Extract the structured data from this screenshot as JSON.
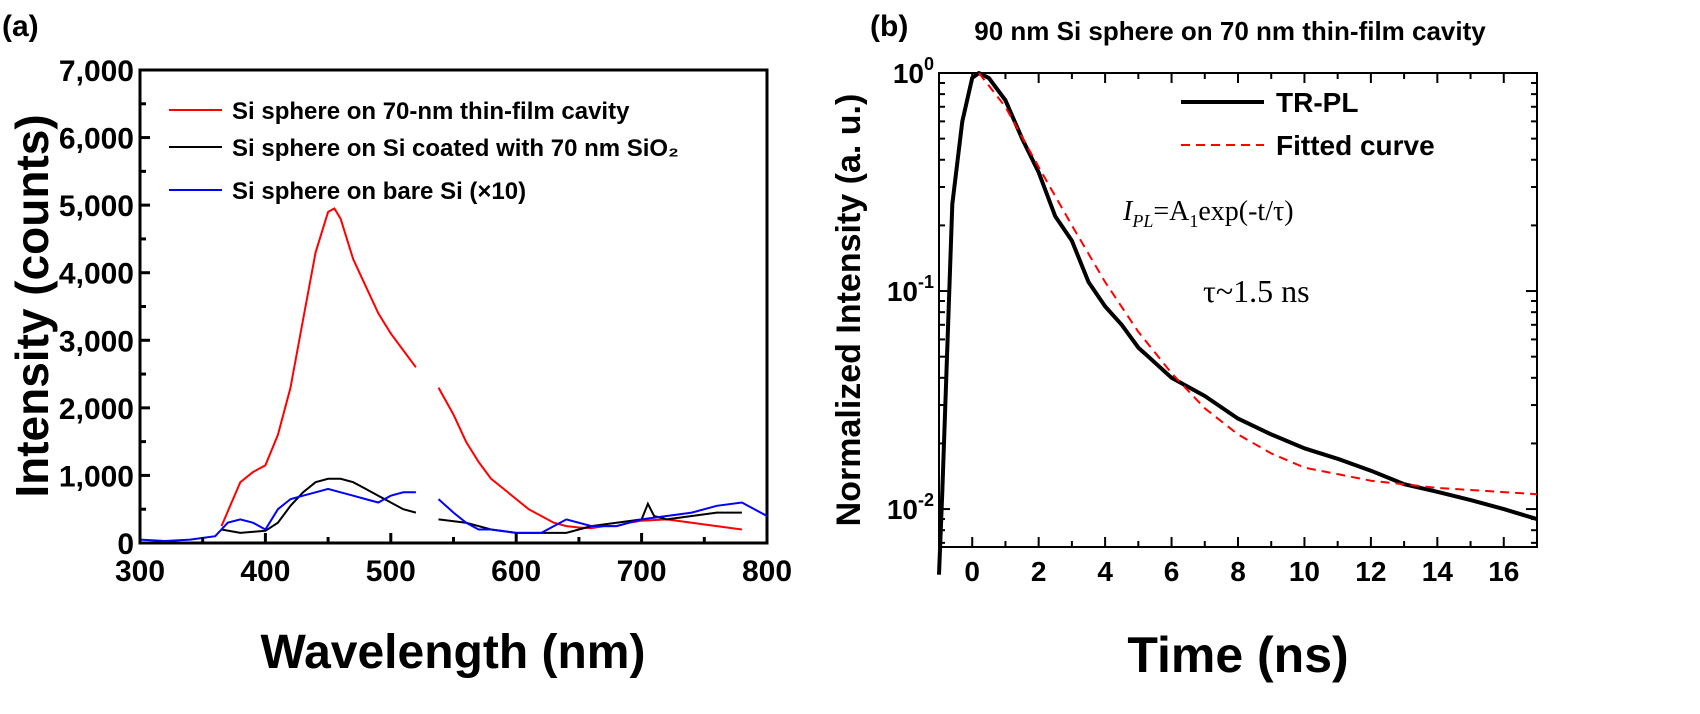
{
  "panels": {
    "a_label": "(a)",
    "b_label": "(b)"
  },
  "chart_data": [
    {
      "type": "line",
      "panel": "(a)",
      "title": "",
      "xlabel": "Wavelength (nm)",
      "ylabel": "Intensity (counts)",
      "xlim": [
        300,
        800
      ],
      "ylim": [
        0,
        7000
      ],
      "xticks": [
        300,
        400,
        500,
        600,
        700,
        800
      ],
      "xtick_labels": [
        "300",
        "400",
        "500",
        "600",
        "700",
        "800"
      ],
      "yticks": [
        0,
        1000,
        2000,
        3000,
        4000,
        5000,
        6000,
        7000
      ],
      "ytick_labels": [
        "0",
        "1,000",
        "2,000",
        "3,000",
        "4,000",
        "5,000",
        "6,000",
        "7,000"
      ],
      "grid": false,
      "legend_position": "top-left",
      "series": [
        {
          "name": "Si sphere on 70-nm thin-film cavity",
          "color": "#ff0000",
          "segments": [
            {
              "x": [
                365,
                380,
                390,
                400,
                410,
                420,
                430,
                440,
                450,
                455,
                460,
                470,
                480,
                490,
                500,
                510,
                520
              ],
              "y": [
                250,
                900,
                1050,
                1150,
                1600,
                2300,
                3300,
                4300,
                4900,
                4950,
                4800,
                4200,
                3800,
                3400,
                3100,
                2850,
                2600
              ]
            },
            {
              "x": [
                538,
                550,
                560,
                570,
                580,
                590,
                600,
                610,
                620,
                630,
                640,
                650,
                660,
                670,
                680,
                690,
                700,
                720,
                740,
                760,
                780
              ],
              "y": [
                2300,
                1900,
                1500,
                1200,
                950,
                800,
                650,
                500,
                400,
                300,
                250,
                230,
                220,
                250,
                250,
                300,
                330,
                350,
                300,
                250,
                200
              ]
            }
          ]
        },
        {
          "name": "Si sphere on Si coated with 70 nm SiO₂",
          "color": "#000000",
          "segments": [
            {
              "x": [
                365,
                380,
                400,
                410,
                420,
                430,
                440,
                450,
                460,
                470,
                480,
                490,
                500,
                510,
                520
              ],
              "y": [
                200,
                150,
                180,
                300,
                550,
                750,
                900,
                950,
                950,
                900,
                800,
                700,
                600,
                500,
                450
              ]
            },
            {
              "x": [
                538,
                560,
                580,
                600,
                620,
                640,
                660,
                680,
                700,
                705,
                710,
                720,
                740,
                760,
                780
              ],
              "y": [
                350,
                300,
                200,
                150,
                150,
                150,
                250,
                300,
                350,
                580,
                400,
                350,
                400,
                450,
                450
              ]
            }
          ]
        },
        {
          "name": "Si sphere on bare Si (×10)",
          "color": "#0000ff",
          "segments": [
            {
              "x": [
                300,
                320,
                340,
                360,
                370,
                380,
                390,
                400,
                410,
                420,
                430,
                440,
                450,
                460,
                470,
                480,
                490,
                500,
                510,
                520
              ],
              "y": [
                50,
                30,
                50,
                100,
                300,
                350,
                300,
                200,
                500,
                650,
                700,
                750,
                800,
                750,
                700,
                650,
                600,
                700,
                750,
                750
              ]
            },
            {
              "x": [
                538,
                550,
                560,
                570,
                580,
                600,
                620,
                640,
                660,
                680,
                700,
                720,
                740,
                760,
                780,
                800
              ],
              "y": [
                650,
                450,
                300,
                200,
                200,
                150,
                150,
                350,
                250,
                250,
                350,
                400,
                450,
                550,
                600,
                400
              ]
            }
          ]
        }
      ]
    },
    {
      "type": "line",
      "panel": "(b)",
      "title": "90 nm Si sphere on 70 nm thin-film cavity",
      "xlabel": "Time (ns)",
      "ylabel": "Normalized Intensity (a. u.)",
      "xlim": [
        -1,
        17
      ],
      "ylim": [
        0.0067,
        1
      ],
      "yscale": "log",
      "xticks": [
        0,
        2,
        4,
        6,
        8,
        10,
        12,
        14,
        16
      ],
      "xtick_labels": [
        "0",
        "2",
        "4",
        "6",
        "8",
        "10",
        "12",
        "14",
        "16"
      ],
      "yticks": [
        1,
        0.1,
        0.01
      ],
      "ytick_labels": [
        {
          "base": "10",
          "exp": "0"
        },
        {
          "base": "10",
          "exp": "-1"
        },
        {
          "base": "10",
          "exp": "-2"
        }
      ],
      "grid": false,
      "legend_position": "top-right",
      "annotations": {
        "equation": {
          "I": "I",
          "sub_PL": "PL",
          "eq": "=A",
          "sub_1": "1",
          "rest": "exp(-t/τ)"
        },
        "tau": "τ~1.5 ns"
      },
      "series": [
        {
          "name": "TR-PL",
          "color": "#000000",
          "style": "solid",
          "x": [
            -1,
            -0.9,
            -0.6,
            -0.3,
            0,
            0.2,
            0.5,
            1,
            1.5,
            2,
            2.5,
            3,
            3.5,
            4,
            4.5,
            5,
            6,
            7,
            8,
            9,
            10,
            11,
            12,
            13,
            14,
            15,
            16,
            17
          ],
          "y": [
            0.005,
            0.012,
            0.25,
            0.6,
            0.95,
            1.0,
            0.95,
            0.75,
            0.5,
            0.35,
            0.22,
            0.17,
            0.11,
            0.085,
            0.07,
            0.055,
            0.04,
            0.033,
            0.026,
            0.022,
            0.019,
            0.017,
            0.015,
            0.013,
            0.012,
            0.011,
            0.01,
            0.009
          ]
        },
        {
          "name": "Fitted curve",
          "color": "#ff0000",
          "style": "dashed",
          "x": [
            0.2,
            1,
            2,
            3,
            4,
            5,
            6,
            7,
            8,
            9,
            10,
            12,
            14,
            17
          ],
          "y": [
            1,
            0.7,
            0.37,
            0.2,
            0.11,
            0.065,
            0.042,
            0.029,
            0.022,
            0.018,
            0.0155,
            0.0135,
            0.0125,
            0.0117
          ]
        }
      ]
    }
  ]
}
